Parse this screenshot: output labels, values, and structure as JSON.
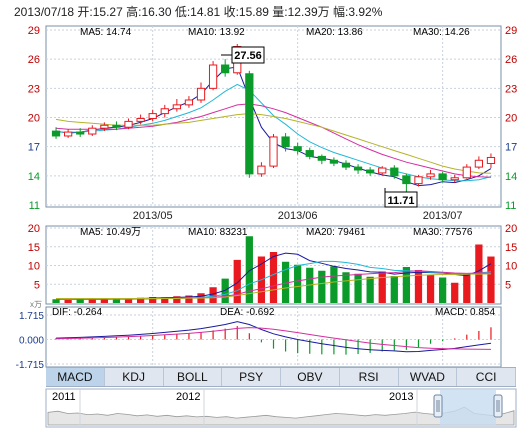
{
  "header": {
    "date": "2013/07/18",
    "open": "开:15.27",
    "high": "高:16.30",
    "low": "低:14.81",
    "close": "收:15.89",
    "volume": "量:12.39万",
    "change": "幅:3.92%"
  },
  "annotations": {
    "high": "27.56",
    "low": "11.71"
  },
  "legends": {
    "price": {
      "ma5": "MA5: 14.74",
      "ma10": "MA10: 13.92",
      "ma20": "MA20: 13.86",
      "ma30": "MA30: 14.26"
    },
    "volume": {
      "ma5": "MA5: 10.49万",
      "ma10": "MA10: 83231",
      "ma20": "MA20: 79461",
      "ma30": "MA30: 77576"
    },
    "macd": {
      "dif": "DIF: -0.264",
      "dea": "DEA: -0.692",
      "macd": "MACD: 0.854"
    }
  },
  "volume": {
    "unit": "x万"
  },
  "tabs": [
    "MACD",
    "KDJ",
    "BOLL",
    "PSY",
    "OBV",
    "RSI",
    "WVAD",
    "CCI"
  ],
  "overview": {
    "years": [
      "2011",
      "2012",
      "2013"
    ]
  },
  "colors": {
    "up": "#e8191f",
    "down": "#0b9b2a",
    "ma5": "#1a1aa0",
    "ma10": "#22b8d8",
    "ma20": "#d42fa0",
    "ma30": "#b4b42a",
    "grid": "#c8d2de",
    "axis_text_up": "#c00000",
    "axis_text_neutral": "#1a3c8c"
  },
  "chart_data": [
    {
      "type": "candlestick",
      "title": "",
      "ylim": [
        11,
        29
      ],
      "y_ticks": [
        29,
        26,
        23,
        20,
        17,
        14,
        11
      ],
      "x_ticks": [
        "2013/05",
        "2013/06",
        "2013/07"
      ],
      "series": [
        {
          "name": "MA5",
          "values": [
            18.6,
            18.4,
            18.5,
            18.7,
            18.9,
            19.0,
            19.2,
            19.5,
            19.9,
            20.5,
            21.1,
            21.6,
            22.4,
            23.8,
            25.0,
            25.2,
            22.0,
            19.0,
            17.4,
            16.8,
            16.6,
            16.0,
            15.8,
            15.6,
            15.2,
            14.8,
            14.4,
            14.1,
            13.9,
            13.4,
            13.0,
            13.1,
            13.4,
            13.3,
            13.6,
            14.0,
            14.74
          ]
        },
        {
          "name": "MA10",
          "values": [
            18.5,
            18.5,
            18.5,
            18.6,
            18.7,
            18.8,
            19.0,
            19.2,
            19.4,
            19.7,
            20.1,
            20.5,
            21.0,
            21.8,
            22.7,
            23.4,
            22.8,
            21.5,
            20.2,
            19.3,
            18.3,
            17.5,
            16.9,
            16.4,
            16.0,
            15.6,
            15.2,
            14.8,
            14.5,
            14.2,
            13.9,
            13.7,
            13.6,
            13.5,
            13.5,
            13.6,
            13.92
          ]
        },
        {
          "name": "MA20",
          "values": [
            18.9,
            18.8,
            18.8,
            18.8,
            18.8,
            18.8,
            18.9,
            19.0,
            19.1,
            19.3,
            19.5,
            19.8,
            20.1,
            20.5,
            20.9,
            21.3,
            21.4,
            21.2,
            20.9,
            20.5,
            20.0,
            19.5,
            19.0,
            18.4,
            17.8,
            17.2,
            16.7,
            16.2,
            15.8,
            15.4,
            15.1,
            14.8,
            14.5,
            14.2,
            14.0,
            13.9,
            13.86
          ]
        },
        {
          "name": "MA30",
          "values": [
            19.8,
            19.6,
            19.5,
            19.4,
            19.3,
            19.2,
            19.2,
            19.2,
            19.2,
            19.3,
            19.4,
            19.5,
            19.7,
            19.9,
            20.1,
            20.3,
            20.4,
            20.3,
            20.1,
            19.9,
            19.6,
            19.3,
            19.0,
            18.6,
            18.2,
            17.8,
            17.4,
            17.0,
            16.6,
            16.2,
            15.8,
            15.4,
            15.0,
            14.7,
            14.5,
            14.3,
            14.26
          ]
        }
      ],
      "candles": [
        [
          18.6,
          18.1,
          19.0,
          17.8
        ],
        [
          18.1,
          18.5,
          18.8,
          17.9
        ],
        [
          18.5,
          18.3,
          18.9,
          18.0
        ],
        [
          18.3,
          18.9,
          19.2,
          18.1
        ],
        [
          18.9,
          19.2,
          19.5,
          18.6
        ],
        [
          19.2,
          19.0,
          19.6,
          18.7
        ],
        [
          19.0,
          19.6,
          19.9,
          18.8
        ],
        [
          19.6,
          19.9,
          20.3,
          19.3
        ],
        [
          19.9,
          20.4,
          20.8,
          19.6
        ],
        [
          20.4,
          20.9,
          21.3,
          20.0
        ],
        [
          20.9,
          21.3,
          21.9,
          20.6
        ],
        [
          21.3,
          21.8,
          22.2,
          21.0
        ],
        [
          21.8,
          23.0,
          23.6,
          21.5
        ],
        [
          23.0,
          25.4,
          25.8,
          22.8
        ],
        [
          25.4,
          24.6,
          26.0,
          24.2
        ],
        [
          24.6,
          27.3,
          27.56,
          24.4
        ],
        [
          24.5,
          14.2,
          24.8,
          13.8
        ],
        [
          14.2,
          15.0,
          15.4,
          13.9
        ],
        [
          15.0,
          18.0,
          18.3,
          14.8
        ],
        [
          18.0,
          17.0,
          18.4,
          16.5
        ],
        [
          17.0,
          16.6,
          17.4,
          16.2
        ],
        [
          16.6,
          16.0,
          16.9,
          15.7
        ],
        [
          16.0,
          15.6,
          16.2,
          15.2
        ],
        [
          15.6,
          15.3,
          15.9,
          15.0
        ],
        [
          15.3,
          14.9,
          15.6,
          14.6
        ],
        [
          14.9,
          14.6,
          15.2,
          14.2
        ],
        [
          14.6,
          14.3,
          14.9,
          14.0
        ],
        [
          14.3,
          14.8,
          15.0,
          14.0
        ],
        [
          14.8,
          14.0,
          15.1,
          13.7
        ],
        [
          14.0,
          13.2,
          14.2,
          11.71
        ],
        [
          13.2,
          13.9,
          14.1,
          12.9
        ],
        [
          13.9,
          14.2,
          14.6,
          13.6
        ],
        [
          14.2,
          13.6,
          14.4,
          13.3
        ],
        [
          13.6,
          13.8,
          14.1,
          13.3
        ],
        [
          13.8,
          14.9,
          15.2,
          13.7
        ],
        [
          14.9,
          15.6,
          16.0,
          14.7
        ],
        [
          15.27,
          15.89,
          16.3,
          14.81
        ]
      ]
    },
    {
      "type": "bar",
      "title": "",
      "ylim": [
        0,
        20
      ],
      "y_ticks": [
        20,
        15,
        10,
        5
      ],
      "values": [
        1.0,
        0.8,
        1.1,
        0.9,
        1.2,
        1.3,
        1.0,
        1.4,
        1.6,
        1.5,
        1.8,
        2.0,
        2.6,
        4.2,
        6.5,
        11.5,
        17.8,
        12.4,
        13.6,
        11.0,
        10.2,
        9.4,
        8.6,
        9.8,
        8.2,
        7.8,
        7.0,
        8.4,
        7.2,
        9.6,
        8.8,
        7.6,
        6.8,
        5.4,
        7.8,
        15.6,
        12.39
      ],
      "ma5": [
        1.0,
        1.0,
        1.0,
        1.0,
        1.0,
        1.1,
        1.1,
        1.2,
        1.3,
        1.4,
        1.5,
        1.6,
        1.8,
        2.4,
        3.4,
        5.4,
        8.6,
        10.4,
        12.4,
        13.3,
        13.0,
        11.3,
        10.6,
        9.8,
        9.2,
        8.8,
        8.3,
        8.2,
        7.7,
        8.0,
        8.2,
        8.1,
        8.0,
        7.6,
        7.3,
        8.6,
        10.49
      ],
      "ma10": [
        1.0,
        1.0,
        1.0,
        1.0,
        1.0,
        1.0,
        1.0,
        1.1,
        1.2,
        1.2,
        1.3,
        1.4,
        1.5,
        1.8,
        2.3,
        3.3,
        5.1,
        6.2,
        7.6,
        8.9,
        10.0,
        10.5,
        11.1,
        11.1,
        10.8,
        10.3,
        9.5,
        9.2,
        8.7,
        8.6,
        8.5,
        8.2,
        8.1,
        7.8,
        7.7,
        8.0,
        8.32
      ],
      "ma20": [
        1.1,
        1.1,
        1.1,
        1.1,
        1.1,
        1.1,
        1.1,
        1.1,
        1.1,
        1.2,
        1.2,
        1.3,
        1.4,
        1.5,
        1.8,
        2.3,
        3.2,
        3.8,
        4.6,
        5.3,
        5.9,
        6.4,
        6.9,
        7.2,
        7.4,
        7.6,
        7.8,
        8.0,
        8.1,
        8.4,
        8.6,
        8.4,
        8.2,
        8.0,
        7.9,
        8.0,
        7.95
      ],
      "ma30": [
        1.2,
        1.2,
        1.2,
        1.2,
        1.2,
        1.2,
        1.2,
        1.2,
        1.2,
        1.2,
        1.2,
        1.3,
        1.3,
        1.4,
        1.6,
        2.0,
        2.5,
        3.0,
        3.5,
        4.0,
        4.4,
        4.8,
        5.2,
        5.6,
        5.9,
        6.2,
        6.5,
        6.8,
        7.0,
        7.2,
        7.4,
        7.5,
        7.6,
        7.6,
        7.7,
        7.7,
        7.76
      ]
    },
    {
      "type": "macd",
      "title": "",
      "ylim": [
        -1.715,
        1.715
      ],
      "y_ticks": [
        "1.715",
        "0.000",
        "-1.715"
      ],
      "dif": [
        0.1,
        0.12,
        0.15,
        0.18,
        0.22,
        0.26,
        0.3,
        0.36,
        0.42,
        0.5,
        0.58,
        0.66,
        0.76,
        0.9,
        1.05,
        1.25,
        1.05,
        0.7,
        0.4,
        0.18,
        0.0,
        -0.15,
        -0.3,
        -0.42,
        -0.55,
        -0.65,
        -0.72,
        -0.76,
        -0.8,
        -0.86,
        -0.84,
        -0.76,
        -0.7,
        -0.62,
        -0.5,
        -0.38,
        -0.264
      ],
      "dea": [
        0.05,
        0.07,
        0.09,
        0.11,
        0.14,
        0.17,
        0.2,
        0.24,
        0.28,
        0.33,
        0.38,
        0.43,
        0.5,
        0.58,
        0.67,
        0.78,
        0.83,
        0.8,
        0.72,
        0.6,
        0.48,
        0.35,
        0.22,
        0.1,
        -0.02,
        -0.14,
        -0.25,
        -0.34,
        -0.42,
        -0.5,
        -0.57,
        -0.61,
        -0.64,
        -0.66,
        -0.67,
        -0.68,
        -0.692
      ],
      "macd": [
        0.1,
        0.1,
        0.12,
        0.14,
        0.16,
        0.18,
        0.2,
        0.24,
        0.28,
        0.34,
        0.4,
        0.46,
        0.52,
        0.64,
        0.76,
        0.94,
        0.44,
        -0.2,
        -0.64,
        -0.84,
        -0.96,
        -1.0,
        -1.04,
        -1.04,
        -1.06,
        -1.02,
        -0.94,
        -0.84,
        -0.76,
        -0.72,
        -0.54,
        -0.3,
        -0.12,
        0.08,
        0.34,
        0.6,
        0.854
      ]
    },
    {
      "type": "area",
      "title": "",
      "x_ticks": [
        "2011",
        "2012",
        "2013"
      ],
      "values": [
        0.55,
        0.6,
        0.5,
        0.52,
        0.45,
        0.48,
        0.42,
        0.5,
        0.46,
        0.4,
        0.44,
        0.38,
        0.42,
        0.36,
        0.4,
        0.35,
        0.38,
        0.33,
        0.36,
        0.3,
        0.34,
        0.38,
        0.42,
        0.36,
        0.33,
        0.3,
        0.35,
        0.4,
        0.45,
        0.5,
        0.48,
        0.44,
        0.4,
        0.45,
        0.42,
        0.46,
        0.5,
        0.56,
        0.5,
        0.46,
        0.52,
        0.6,
        0.78,
        0.5,
        0.45,
        0.4,
        0.5,
        0.62
      ]
    }
  ]
}
